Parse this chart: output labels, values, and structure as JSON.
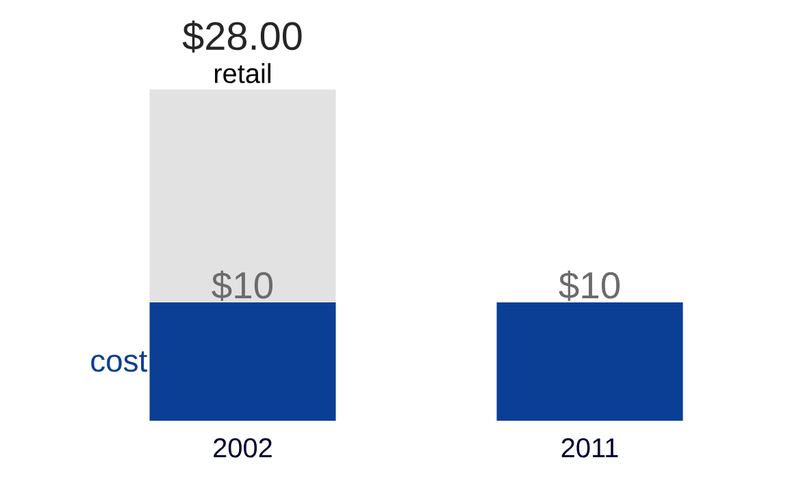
{
  "chart_data": {
    "type": "bar",
    "stacked": true,
    "categories": [
      "2002",
      "2011"
    ],
    "series": [
      {
        "name": "cost",
        "color": "#0b3f96",
        "values": [
          10,
          10
        ],
        "value_labels": [
          "$10",
          "$10"
        ]
      },
      {
        "name": "retail",
        "color": "#e2e2e2",
        "values": [
          18,
          null
        ]
      }
    ],
    "totals": [
      "$28.00",
      null
    ],
    "tick_labels": "x"
  }
}
